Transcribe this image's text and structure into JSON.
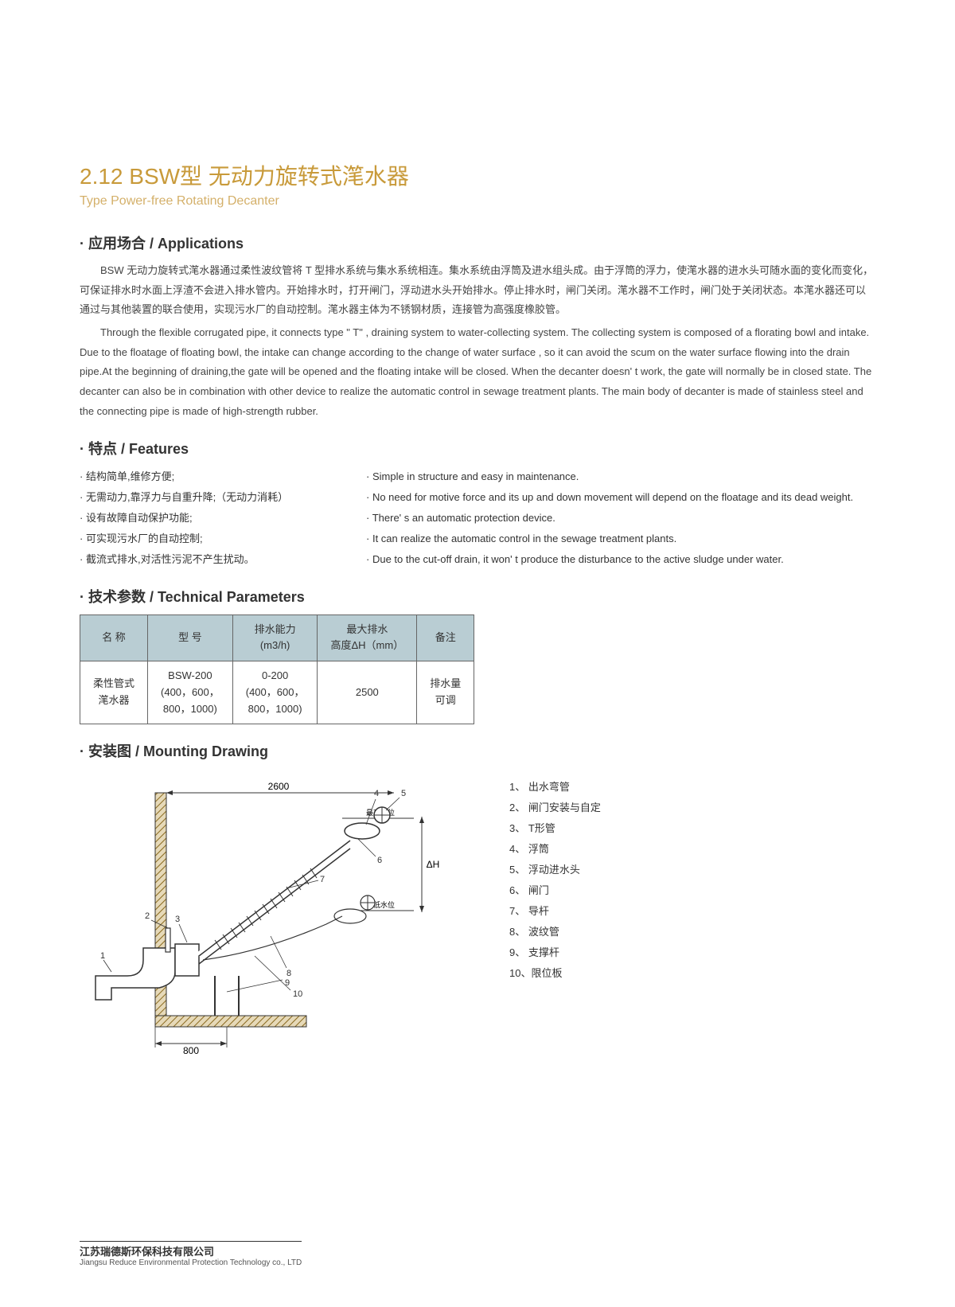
{
  "title": {
    "main": "2.12  BSW型 无动力旋转式滗水器",
    "sub": "Type Power-free Rotating Decanter"
  },
  "sections": {
    "applications_heading": "应用场合 / Applications",
    "features_heading": "特点 /  Features",
    "params_heading": "技术参数 / Technical Parameters",
    "mounting_heading": "安装图 / Mounting Drawing"
  },
  "applications": {
    "cn": "BSW 无动力旋转式滗水器通过柔性波纹管将 T 型排水系统与集水系统相连。集水系统由浮筒及进水组头成。由于浮筒的浮力，使滗水器的进水头可随水面的变化而变化，可保证排水时水面上浮渣不会进入排水管内。开始排水时，打开闸门，浮动进水头开始排水。停止排水时，闸门关闭。滗水器不工作时，闸门处于关闭状态。本滗水器还可以通过与其他装置的联合使用，实现污水厂的自动控制。滗水器主体为不锈钢材质，连接管为高强度橡胶管。",
    "en": "Through the flexible corrugated pipe, it connects type \" T\" , draining system to water-collecting system. The collecting system is composed of a florating bowl and intake. Due to the floatage of floating bowl, the intake can change according to the change of water surface , so it can avoid the scum on the water surface flowing into the drain pipe.At the beginning of draining,the gate will be opened and the floating intake will be closed. When the decanter doesn' t work, the gate will normally be in closed state. The decanter can also be in combination with other device to realize the automatic control in sewage treatment plants. The main body of decanter is made of stainless steel and the connecting pipe is made of high-strength rubber."
  },
  "features": {
    "cn": [
      "结构简单,维修方便;",
      "无需动力,靠浮力与自重升降;（无动力消耗）",
      "设有故障自动保护功能;",
      "可实现污水厂的自动控制;",
      "截流式排水,对活性污泥不产生扰动。"
    ],
    "en": [
      "Simple in structure and easy in maintenance.",
      " No need for motive force and its up and down movement will depend on the floatage and its dead weight.",
      "There' s an automatic protection device.",
      "It can realize the automatic control in the sewage treatment plants.",
      "Due to the cut-off drain,  it won' t produce the disturbance to the active sludge under water."
    ]
  },
  "params_table": {
    "headers": [
      "名 称",
      "型 号",
      "排水能力\n(m3/h)",
      "最大排水\n高度ΔH（mm）",
      "备注"
    ],
    "row": {
      "name": "柔性管式\n滗水器",
      "model": "BSW-200\n(400，600，\n800，1000)",
      "capacity": "0-200\n(400，600，\n800，1000)",
      "max_dh": "2500",
      "note": "排水量\n可调"
    }
  },
  "drawing": {
    "dim_top": "2600",
    "dim_bottom": "800",
    "label_high": "最高水位",
    "label_low": "最低水位",
    "label_dh": "ΔH",
    "callouts": [
      "1",
      "2",
      "3",
      "4",
      "5",
      "6",
      "7",
      "8",
      "9",
      "10"
    ]
  },
  "legend": [
    "1、 出水弯管",
    "2、 闸门安装与自定",
    "3、 T形管",
    "4、 浮筒",
    "5、 浮动进水头",
    "6、 闸门",
    "7、 导杆",
    "8、 波纹管",
    "9、 支撑杆",
    "10、限位板"
  ],
  "footer": {
    "cn": "江苏瑞德斯环保科技有限公司",
    "en": "Jiangsu Reduce Environmental Protection Technology co., LTD"
  },
  "styling": {
    "title_color": "#c89a3a",
    "subtitle_color": "#d4b06a",
    "table_header_bg": "#b9cdd3",
    "table_border": "#666666",
    "text_color": "#333333",
    "page_bg": "#ffffff",
    "wall_hatch": "#c9a24a",
    "line_stroke": "#333333"
  }
}
